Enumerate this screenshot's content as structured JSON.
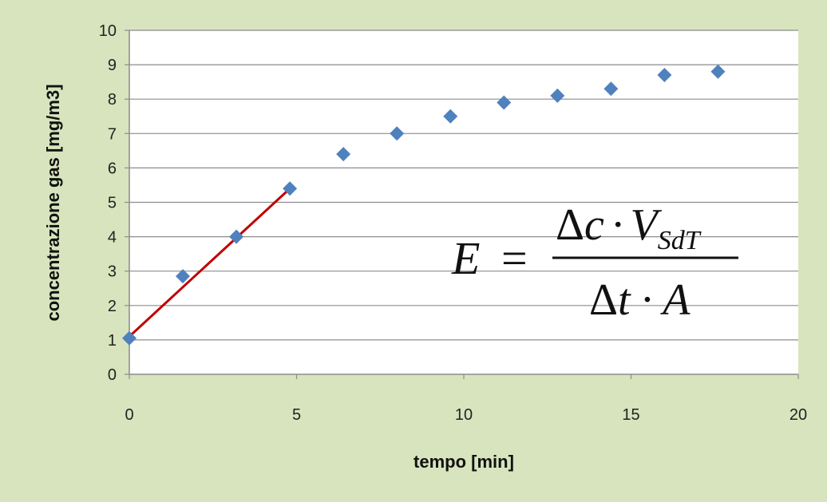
{
  "chart_data": {
    "type": "scatter",
    "xlabel": "tempo [min]",
    "ylabel": "concentrazione gas [mg/m3]",
    "xlim": [
      0,
      20
    ],
    "ylim": [
      0,
      10
    ],
    "xticks": [
      "0",
      "5",
      "10",
      "15",
      "20"
    ],
    "yticks": [
      "0",
      "1",
      "2",
      "3",
      "4",
      "5",
      "6",
      "7",
      "8",
      "9",
      "10"
    ],
    "grid": "horizontal",
    "series": [
      {
        "marker": "diamond",
        "color": "#4f81bd",
        "x": [
          0,
          1.6,
          3.2,
          4.8,
          6.4,
          8.0,
          9.6,
          11.2,
          12.8,
          14.4,
          16.0,
          17.6
        ],
        "y": [
          1.05,
          2.85,
          4.0,
          5.4,
          6.4,
          7.0,
          7.5,
          7.9,
          8.1,
          8.3,
          8.7,
          8.8
        ]
      }
    ],
    "trendline": {
      "color": "#c00000",
      "x": [
        0,
        4.8
      ],
      "y": [
        1.1,
        5.4
      ]
    },
    "annotation": {
      "lhs": "E",
      "equals": "=",
      "numerator_delta": "Δ",
      "numerator_var": "c",
      "dot": "·",
      "numerator_V": "V",
      "numerator_sub": "SdT",
      "denominator_delta": "Δ",
      "denominator_var": "t",
      "denominator_A": "A"
    }
  }
}
